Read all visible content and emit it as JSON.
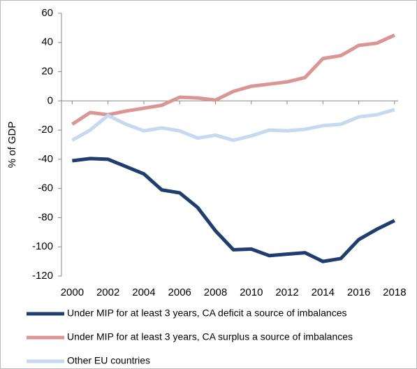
{
  "chart_data": {
    "type": "line",
    "y_label": "% of GDP",
    "x": [
      2000,
      2001,
      2002,
      2003,
      2004,
      2005,
      2006,
      2007,
      2008,
      2009,
      2010,
      2011,
      2012,
      2013,
      2014,
      2015,
      2016,
      2017,
      2018
    ],
    "xlim": [
      1999.4,
      2018.2
    ],
    "xticks": [
      2000,
      2002,
      2004,
      2006,
      2008,
      2010,
      2012,
      2014,
      2016,
      2018
    ],
    "ylim": [
      -120,
      60
    ],
    "yticks": [
      60,
      40,
      20,
      0,
      -20,
      -40,
      -60,
      -80,
      -100,
      -120
    ],
    "grid": false,
    "series": [
      {
        "name": "Under MIP for at least 3 years, CA deficit a source of imbalances",
        "color": "#1f3d6e",
        "values": [
          -41,
          -39.5,
          -40,
          -45,
          -50,
          -61,
          -63,
          -73,
          -89,
          -102,
          -101.5,
          -106,
          -105,
          -104,
          -110,
          -108,
          -95,
          -88,
          -82
        ]
      },
      {
        "name": "Under MIP for at least 3 years, CA surplus a source of imbalances",
        "color": "#d99694",
        "values": [
          -16,
          -8,
          -9.5,
          -7,
          -5,
          -3,
          2.5,
          2,
          0.5,
          6.5,
          10,
          11.5,
          13,
          16,
          29,
          31,
          38,
          39.5,
          45
        ]
      },
      {
        "name": "Other EU countries",
        "color": "#c6d9f1",
        "values": [
          -27,
          -20,
          -10,
          -16,
          -20.5,
          -18.5,
          -20.5,
          -25.5,
          -23.5,
          -27,
          -24,
          -20,
          -20.5,
          -19.5,
          -17,
          -16,
          -11,
          -9.5,
          -6
        ]
      }
    ]
  }
}
